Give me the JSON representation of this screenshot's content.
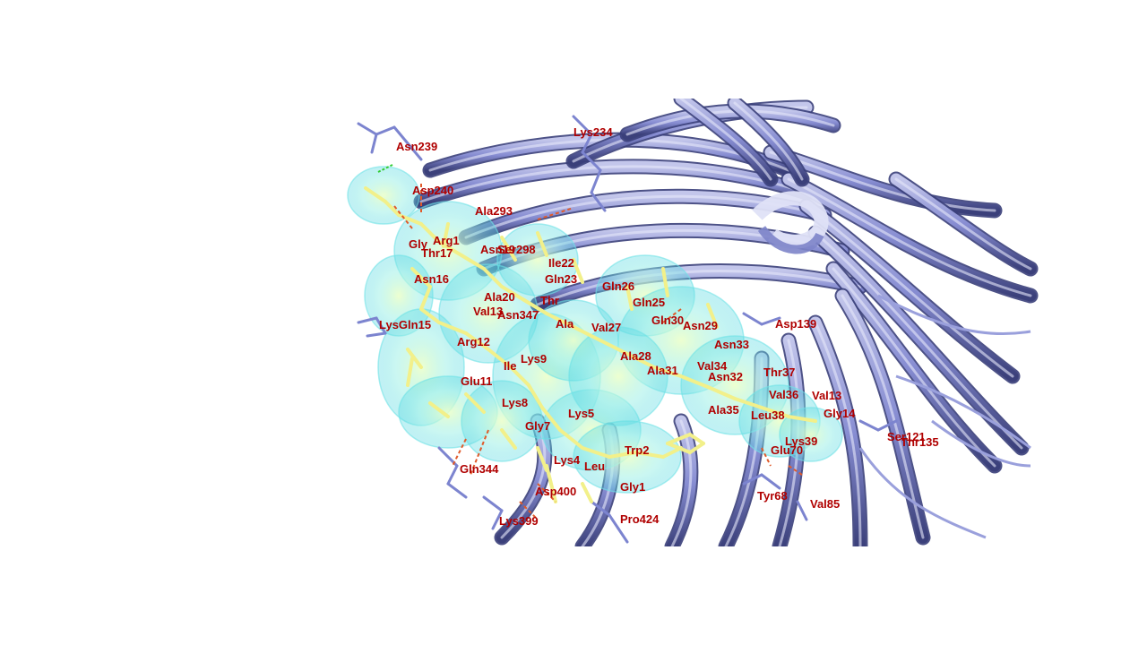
{
  "colors": {
    "background": "#ffffff",
    "receptor_ribbon": "#8a90d6",
    "receptor_ribbon_dark": "#3a3f7a",
    "receptor_sticks": "#7c84cf",
    "ligand_sticks": "#f2f08a",
    "surface": "#6fe3e6",
    "label": "#b00000",
    "hbond": "#e05a2a",
    "contact_green": "#33cc33"
  },
  "residue_labels": [
    "Asn239",
    "Lys234",
    "Asp240",
    "Ala293",
    "Gly",
    "Arg1",
    "Thr17",
    "Asn19",
    "Ser298",
    "Ile22",
    "Asn16",
    "Gln23",
    "Gln26",
    "Ala20",
    "Thr",
    "Asn347",
    "Gln25",
    "Val13",
    "LysGln15",
    "Val27",
    "Gln30",
    "Asn29",
    "Asp139",
    "Ala",
    "Arg12",
    "Asn33",
    "Lys9",
    "Ile",
    "Ala28",
    "Ala31",
    "Val34",
    "Thr37",
    "Asn32",
    "Glu11",
    "Val36",
    "Val13",
    "Lys8",
    "Ala35",
    "Leu38",
    "Gly14",
    "Lys5",
    "Gly7",
    "Lys39",
    "Ser121",
    "Thr135",
    "Trp2",
    "Glu70",
    "Lys4",
    "Leu",
    "Gln344",
    "Gly1",
    "Asp400",
    "Tyr68",
    "Val85",
    "Lys399",
    "Pro424"
  ]
}
